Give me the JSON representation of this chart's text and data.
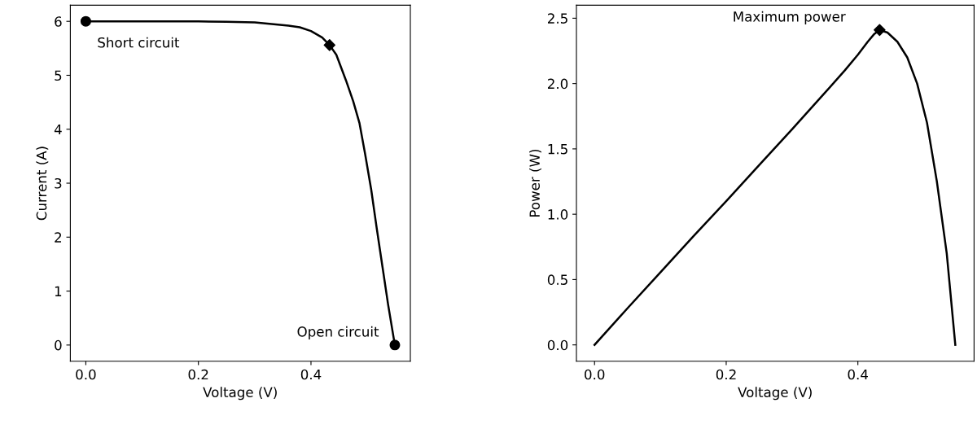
{
  "chart_data": [
    {
      "type": "line",
      "xlabel": "Voltage (V)",
      "ylabel": "Current (A)",
      "xlim": [
        -0.0275,
        0.5765
      ],
      "ylim": [
        -0.3,
        6.3
      ],
      "xticks": [
        {
          "value": 0,
          "label": "0.0"
        },
        {
          "value": 0.2,
          "label": "0.2"
        },
        {
          "value": 0.4,
          "label": "0.4"
        }
      ],
      "yticks": [
        0,
        1,
        2,
        3,
        4,
        5,
        6
      ],
      "grid": false,
      "legend": false,
      "series": [
        {
          "type": "line",
          "color": "#000000",
          "marker": "none",
          "x": [
            0,
            0.05,
            0.1,
            0.15,
            0.2,
            0.25,
            0.3,
            0.33,
            0.36,
            0.38,
            0.4,
            0.42,
            0.433,
            0.445,
            0.462,
            0.475,
            0.486,
            0.496,
            0.507,
            0.517,
            0.527,
            0.537,
            0.549
          ],
          "values": [
            6.0,
            6.0,
            6.0,
            6.0,
            6.0,
            5.99,
            5.98,
            5.95,
            5.92,
            5.89,
            5.82,
            5.7,
            5.56,
            5.38,
            4.91,
            4.52,
            4.12,
            3.55,
            2.88,
            2.15,
            1.45,
            0.75,
            0
          ]
        },
        {
          "type": "scatter",
          "color": "#000000",
          "marker": "circle",
          "x": [
            0,
            0.549
          ],
          "values": [
            6.0,
            0
          ]
        },
        {
          "type": "scatter",
          "color": "#000000",
          "marker": "diamond",
          "x": [
            0.433
          ],
          "values": [
            5.56
          ]
        }
      ],
      "annotations": [
        {
          "text": "Short circuit",
          "x": 0,
          "y": 6.0
        },
        {
          "text": "Open circuit",
          "x": 0.549,
          "y": 0
        }
      ]
    },
    {
      "type": "line",
      "xlabel": "Voltage (V)",
      "ylabel": "Power (W)",
      "xlim": [
        -0.0275,
        0.5765
      ],
      "ylim": [
        -0.125,
        2.6
      ],
      "xticks": [
        {
          "value": 0,
          "label": "0.0"
        },
        {
          "value": 0.2,
          "label": "0.2"
        },
        {
          "value": 0.4,
          "label": "0.4"
        }
      ],
      "yticks": [
        {
          "value": 0,
          "label": "0.0"
        },
        0.5,
        {
          "value": 1,
          "label": "1.0"
        },
        1.5,
        {
          "value": 2,
          "label": "2.0"
        },
        2.5
      ],
      "grid": false,
      "legend": false,
      "series": [
        {
          "type": "line",
          "color": "#000000",
          "marker": "none",
          "x": [
            0,
            0.05,
            0.1,
            0.15,
            0.2,
            0.25,
            0.3,
            0.35,
            0.38,
            0.4,
            0.415,
            0.425,
            0.433,
            0.445,
            0.46,
            0.475,
            0.49,
            0.505,
            0.52,
            0.535,
            0.548
          ],
          "values": [
            0,
            0.28,
            0.555,
            0.83,
            1.1,
            1.375,
            1.65,
            1.93,
            2.1,
            2.22,
            2.32,
            2.38,
            2.41,
            2.39,
            2.32,
            2.2,
            2.0,
            1.7,
            1.25,
            0.7,
            0
          ]
        },
        {
          "type": "scatter",
          "color": "#000000",
          "marker": "diamond",
          "x": [
            0.433
          ],
          "values": [
            2.41
          ]
        }
      ],
      "annotations": [
        {
          "text": "Maximum power",
          "x": 0.433,
          "y": 2.41
        }
      ]
    }
  ]
}
